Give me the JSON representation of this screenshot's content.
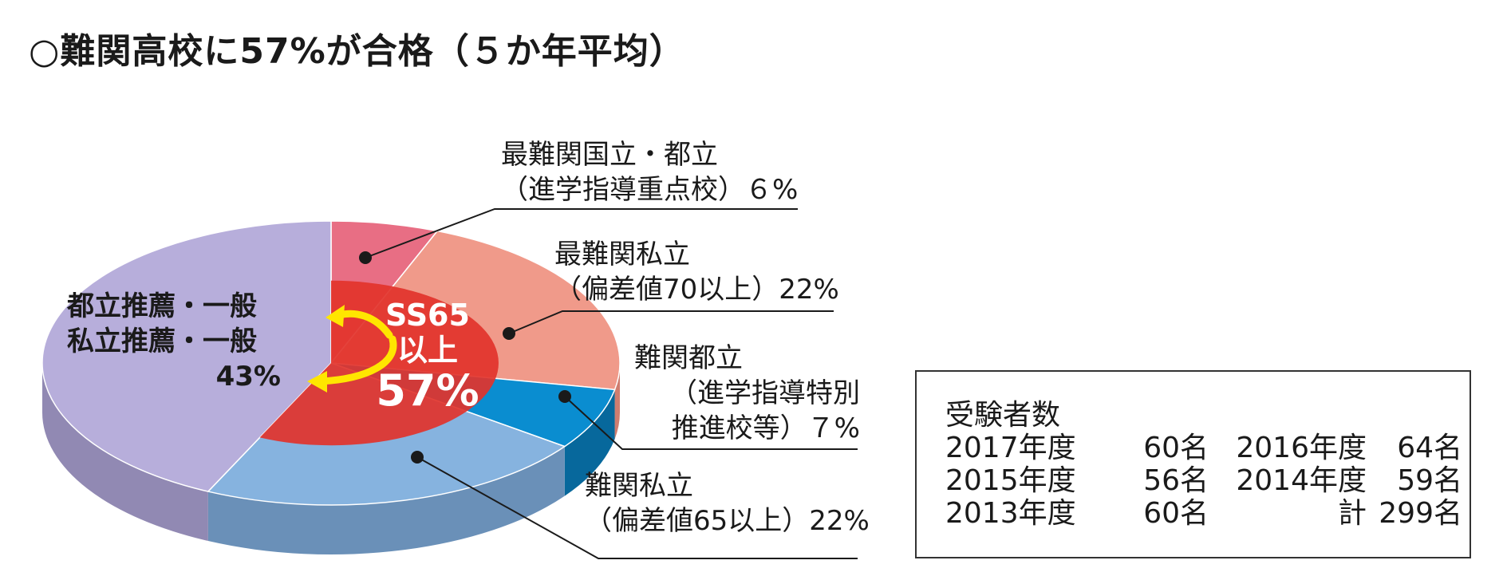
{
  "title": "○難関高校に57%が合格（５か年平均）",
  "chart_data": {
    "type": "pie",
    "title": "○難関高校に57%が合格（５か年平均）",
    "slices": [
      {
        "name_lines": [
          "最難関国立・都立",
          "（進学指導重点校）６%"
        ],
        "value": 6,
        "color": "#e86e84",
        "side": "#c45268"
      },
      {
        "name_lines": [
          "最難関私立",
          "（偏差値70以上）22%"
        ],
        "value": 22,
        "color": "#f09a8a",
        "side": "#cf7d6f"
      },
      {
        "name_lines": [
          "難関都立",
          "（進学指導特別",
          "推進校等）７%"
        ],
        "value": 7,
        "color": "#0a8dd0",
        "side": "#07689c"
      },
      {
        "name_lines": [
          "難関私立",
          "（偏差値65以上）22%"
        ],
        "value": 22,
        "color": "#86b3df",
        "side": "#6a90b8"
      },
      {
        "name_lines": [
          "都立推薦・一般",
          "私立推薦・一般",
          "43%"
        ],
        "value": 43,
        "color": "#b7aedb",
        "side": "#9189b3"
      }
    ],
    "center_label": {
      "line1": "SS65",
      "line2": "以上",
      "value": "57%"
    },
    "center_value": 57
  },
  "stats_box": {
    "heading": "受験者数",
    "rows": [
      [
        "2017年度",
        "60名",
        "2016年度",
        "64名"
      ],
      [
        "2015年度",
        "56名",
        "2014年度",
        "59名"
      ],
      [
        "2013年度",
        "60名",
        "計",
        "299名"
      ]
    ]
  },
  "colors": {
    "highlight": "#e2332b",
    "arrow": "#ffe600"
  }
}
